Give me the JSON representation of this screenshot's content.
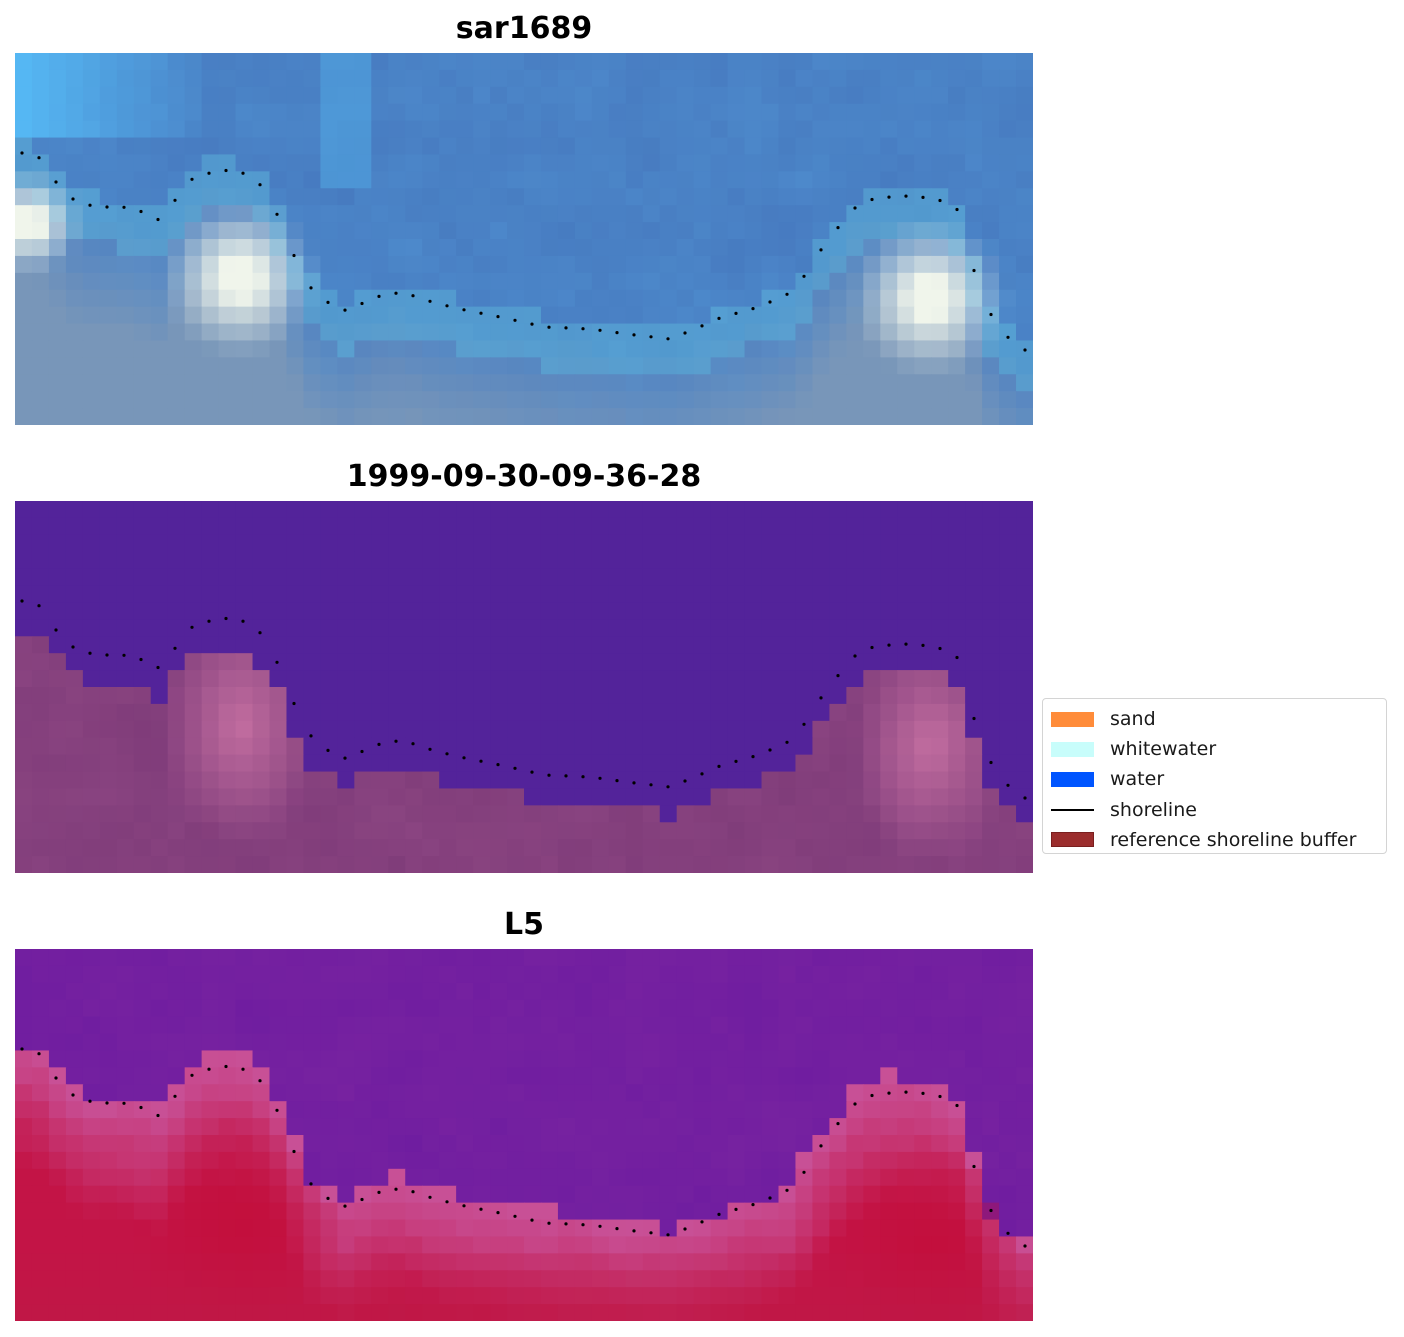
{
  "panels": [
    {
      "id": "rgb",
      "title": "sar1689"
    },
    {
      "id": "classified",
      "title": "1999-09-30-09-36-28"
    },
    {
      "id": "index",
      "title": "L5"
    }
  ],
  "legend": {
    "items": [
      {
        "label": "sand",
        "kind": "patch",
        "color": "#ff8c3a"
      },
      {
        "label": "whitewater",
        "kind": "patch",
        "color": "#c8fdfb"
      },
      {
        "label": "water",
        "kind": "patch",
        "color": "#0055ff"
      },
      {
        "label": "shoreline",
        "kind": "line",
        "color": "#000000"
      },
      {
        "label": "reference shoreline buffer",
        "kind": "patch",
        "color": "#9b2d2d",
        "edge": "#7a1f1f"
      }
    ]
  },
  "colors": {
    "water_class": "#53239a",
    "sand_region": "#7e3a78",
    "index_low": "#6a1aa0",
    "index_high": "#be0a3a",
    "rgb_sky": "#4a86c4"
  }
}
